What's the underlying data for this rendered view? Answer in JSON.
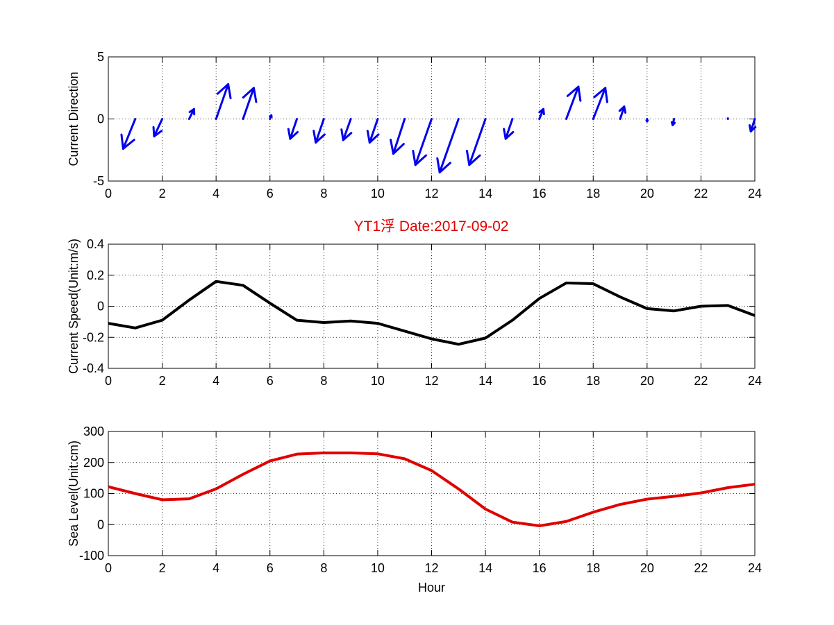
{
  "figure_title": "YT1浮    Date:2017-09-02",
  "colors": {
    "title": "#e00000",
    "direction": "#0000ee",
    "speed": "#000000",
    "sea_level": "#e00000",
    "grid": "#000000",
    "background": "#ffffff"
  },
  "chart_data": [
    {
      "type": "quiver",
      "title": "",
      "xlabel": "",
      "ylabel": "Current Direction",
      "xlim": [
        0,
        24
      ],
      "ylim": [
        -5,
        5
      ],
      "xticks": [
        0,
        2,
        4,
        6,
        8,
        10,
        12,
        14,
        16,
        18,
        20,
        22,
        24
      ],
      "yticks": [
        -5,
        0,
        5
      ],
      "grid": "dotted",
      "arrows": [
        {
          "x": 1,
          "u": -0.45,
          "v": -2.4
        },
        {
          "x": 2,
          "u": -0.3,
          "v": -1.4
        },
        {
          "x": 3,
          "u": 0.18,
          "v": 0.8
        },
        {
          "x": 4,
          "u": 0.45,
          "v": 2.8
        },
        {
          "x": 5,
          "u": 0.4,
          "v": 2.5
        },
        {
          "x": 6,
          "u": 0.05,
          "v": 0.3
        },
        {
          "x": 7,
          "u": -0.25,
          "v": -1.6
        },
        {
          "x": 8,
          "u": -0.3,
          "v": -1.9
        },
        {
          "x": 9,
          "u": -0.28,
          "v": -1.7
        },
        {
          "x": 10,
          "u": -0.3,
          "v": -1.9
        },
        {
          "x": 11,
          "u": -0.42,
          "v": -2.8
        },
        {
          "x": 12,
          "u": -0.6,
          "v": -3.7
        },
        {
          "x": 13,
          "u": -0.7,
          "v": -4.3
        },
        {
          "x": 14,
          "u": -0.6,
          "v": -3.7
        },
        {
          "x": 15,
          "u": -0.25,
          "v": -1.6
        },
        {
          "x": 16,
          "u": 0.15,
          "v": 0.8
        },
        {
          "x": 17,
          "u": 0.45,
          "v": 2.6
        },
        {
          "x": 18,
          "u": 0.45,
          "v": 2.5
        },
        {
          "x": 19,
          "u": 0.15,
          "v": 1.0
        },
        {
          "x": 20,
          "u": 0.0,
          "v": -0.2
        },
        {
          "x": 21,
          "u": -0.05,
          "v": -0.5
        },
        {
          "x": 23,
          "u": 0.0,
          "v": 0.05
        },
        {
          "x": 24,
          "u": -0.15,
          "v": -1.0
        }
      ]
    },
    {
      "type": "line",
      "title": "YT1浮    Date:2017-09-02",
      "xlabel": "",
      "ylabel": "Current Speed(Unit:m/s)",
      "xlim": [
        0,
        24
      ],
      "ylim": [
        -0.4,
        0.4
      ],
      "xticks": [
        0,
        2,
        4,
        6,
        8,
        10,
        12,
        14,
        16,
        18,
        20,
        22,
        24
      ],
      "yticks": [
        -0.4,
        -0.2,
        0,
        0.2,
        0.4
      ],
      "grid": "dotted",
      "x": [
        0,
        1,
        2,
        3,
        4,
        5,
        6,
        7,
        8,
        9,
        10,
        11,
        12,
        13,
        14,
        15,
        16,
        17,
        18,
        19,
        20,
        21,
        22,
        23,
        24
      ],
      "series": [
        {
          "values": [
            -0.11,
            -0.14,
            -0.09,
            0.04,
            0.16,
            0.135,
            0.02,
            -0.09,
            -0.105,
            -0.095,
            -0.11,
            -0.16,
            -0.21,
            -0.245,
            -0.205,
            -0.09,
            0.05,
            0.15,
            0.145,
            0.06,
            -0.015,
            -0.03,
            0.0,
            0.005,
            -0.06
          ]
        }
      ]
    },
    {
      "type": "line",
      "title": "",
      "xlabel": "Hour",
      "ylabel": "Sea Level(Unit:cm)",
      "xlim": [
        0,
        24
      ],
      "ylim": [
        -100,
        300
      ],
      "xticks": [
        0,
        2,
        4,
        6,
        8,
        10,
        12,
        14,
        16,
        18,
        20,
        22,
        24
      ],
      "yticks": [
        -100,
        0,
        100,
        200,
        300
      ],
      "grid": "dotted",
      "x": [
        0,
        1,
        2,
        3,
        4,
        5,
        6,
        7,
        8,
        9,
        10,
        11,
        12,
        13,
        14,
        15,
        16,
        17,
        18,
        19,
        20,
        21,
        22,
        23,
        24
      ],
      "series": [
        {
          "values": [
            122,
            100,
            80,
            83,
            115,
            162,
            205,
            227,
            231,
            231,
            228,
            212,
            174,
            115,
            50,
            8,
            -4,
            10,
            40,
            65,
            82,
            91,
            102,
            119,
            130
          ]
        }
      ]
    }
  ]
}
